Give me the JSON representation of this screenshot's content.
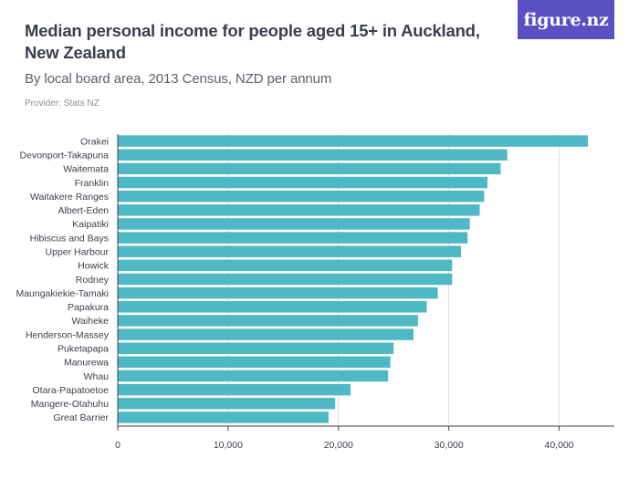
{
  "header": {
    "title": "Median personal income for people aged 15+ in Auckland, New Zealand",
    "subtitle": "By local board area, 2013 Census, NZD per annum",
    "provider": "Provider: Stats NZ",
    "logo_text": "figure.nz"
  },
  "colors": {
    "bar": "#4fb8c5",
    "gridline": "#d9dce1",
    "axis": "#3a3f4a",
    "logo_bg": "#5b4fc4"
  },
  "chart_data": {
    "type": "bar",
    "orientation": "horizontal",
    "title": "Median personal income for people aged 15+ in Auckland, New Zealand",
    "subtitle": "By local board area, 2013 Census, NZD per annum",
    "xlabel": "",
    "ylabel": "",
    "xlim": [
      0,
      45000
    ],
    "grid": true,
    "legend": "none",
    "ticks": [
      {
        "value": 0,
        "label": "0"
      },
      {
        "value": 10000,
        "label": "10,000"
      },
      {
        "value": 20000,
        "label": "20,000"
      },
      {
        "value": 30000,
        "label": "30,000"
      },
      {
        "value": 40000,
        "label": "40,000"
      }
    ],
    "categories": [
      "Orakei",
      "Devonport-Takapuna",
      "Waitemata",
      "Franklin",
      "Waitakere Ranges",
      "Albert-Eden",
      "Kaipatiki",
      "Hibiscus and Bays",
      "Upper Harbour",
      "Howick",
      "Rodney",
      "Maungakiekie-Tamaki",
      "Papakura",
      "Waiheke",
      "Henderson-Massey",
      "Puketapapa",
      "Manurewa",
      "Whau",
      "Otara-Papatoetoe",
      "Mangere-Otahuhu",
      "Great Barrier"
    ],
    "values": [
      42600,
      35300,
      34700,
      33500,
      33200,
      32800,
      31900,
      31700,
      31100,
      30300,
      30300,
      29000,
      28000,
      27200,
      26800,
      25000,
      24700,
      24500,
      21100,
      19700,
      19100
    ]
  }
}
